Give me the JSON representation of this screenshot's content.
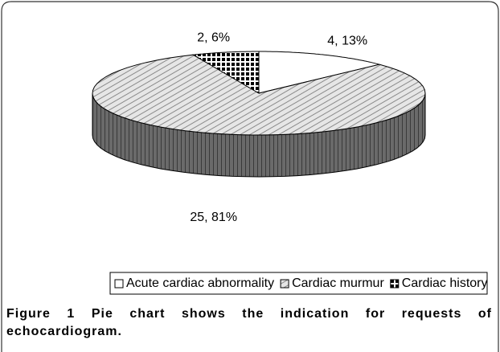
{
  "chart_data": {
    "type": "pie",
    "categories": [
      "Acute cardiac abnormality",
      "Cardiac murmur",
      "Cardiac history"
    ],
    "values": [
      4,
      25,
      2
    ],
    "value_labels": [
      "4, 13%",
      "25, 81%",
      "2, 6%"
    ],
    "colors": [
      "#ffffff",
      "#d0d0d0",
      "#ffffff"
    ],
    "patterns": [
      "none",
      "hatch",
      "checker"
    ],
    "legend": "bottom"
  },
  "caption": {
    "label": "Figure 1",
    "text": "Pie chart shows the indication for requests of echocardiogram."
  }
}
